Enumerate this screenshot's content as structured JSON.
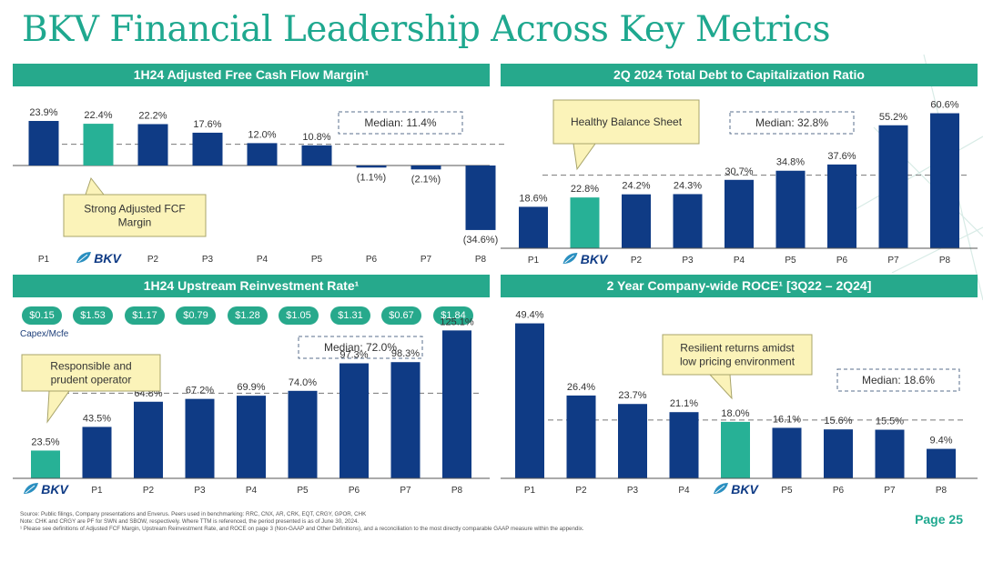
{
  "title": "BKV Financial Leadership Across Key Metrics",
  "colors": {
    "navy": "#0f3b85",
    "teal": "#27b196",
    "header": "#26a98c",
    "callout": "#fbf3b9",
    "callout_border": "#a8a46a"
  },
  "brand_label": "BKV",
  "chart_data": [
    {
      "type": "bar",
      "title": "1H24 Adjusted Free Cash Flow Margin¹",
      "categories": [
        "P1",
        "BKV",
        "P2",
        "P3",
        "P4",
        "P5",
        "P6",
        "P7",
        "P8"
      ],
      "values": [
        23.9,
        22.4,
        22.2,
        17.6,
        12.0,
        10.8,
        -1.1,
        -2.1,
        -34.6
      ],
      "labels": [
        "23.9%",
        "22.4%",
        "22.2%",
        "17.6%",
        "12.0%",
        "10.8%",
        "(1.1%)",
        "(2.1%)",
        "(34.6%)"
      ],
      "highlight_index": 1,
      "median": 11.4,
      "median_label": "Median: 11.4%",
      "callout": "Strong Adjusted FCF Margin",
      "ylim": [
        -36,
        25
      ]
    },
    {
      "type": "bar",
      "title": "2Q 2024 Total Debt to Capitalization Ratio",
      "categories": [
        "P1",
        "BKV",
        "P2",
        "P3",
        "P4",
        "P5",
        "P6",
        "P7",
        "P8"
      ],
      "values": [
        18.6,
        22.8,
        24.2,
        24.3,
        30.7,
        34.8,
        37.6,
        55.2,
        60.6
      ],
      "labels": [
        "18.6%",
        "22.8%",
        "24.2%",
        "24.3%",
        "30.7%",
        "34.8%",
        "37.6%",
        "55.2%",
        "60.6%"
      ],
      "highlight_index": 1,
      "median": 32.8,
      "median_label": "Median: 32.8%",
      "callout": "Healthy Balance Sheet",
      "ylim": [
        0,
        62
      ]
    },
    {
      "type": "bar",
      "title": "1H24 Upstream Reinvestment Rate¹",
      "categories": [
        "BKV",
        "P1",
        "P2",
        "P3",
        "P4",
        "P5",
        "P6",
        "P7",
        "P8"
      ],
      "values": [
        23.5,
        43.5,
        64.8,
        67.2,
        69.9,
        74.0,
        97.3,
        98.3,
        125.1
      ],
      "labels": [
        "23.5%",
        "43.5%",
        "64.8%",
        "67.2%",
        "69.9%",
        "74.0%",
        "97.3%",
        "98.3%",
        "125.1%"
      ],
      "highlight_index": 0,
      "median": 72.0,
      "median_label": "Median: 72.0%",
      "callout": "Responsible and prudent operator",
      "capex": [
        "$0.15",
        "$1.53",
        "$1.17",
        "$0.79",
        "$1.28",
        "$1.05",
        "$1.31",
        "$0.67",
        "$1.84"
      ],
      "capex_label": "Capex/Mcfe",
      "ylim": [
        0,
        128
      ]
    },
    {
      "type": "bar",
      "title": "2 Year Company-wide ROCE¹ [3Q22 – 2Q24]",
      "categories": [
        "P1",
        "P2",
        "P3",
        "P4",
        "BKV",
        "P5",
        "P6",
        "P7",
        "P8"
      ],
      "values": [
        49.4,
        26.4,
        23.7,
        21.1,
        18.0,
        16.1,
        15.6,
        15.5,
        9.4
      ],
      "labels": [
        "49.4%",
        "26.4%",
        "23.7%",
        "21.1%",
        "18.0%",
        "16.1%",
        "15.6%",
        "15.5%",
        "9.4%"
      ],
      "highlight_index": 4,
      "median": 18.6,
      "median_label": "Median: 18.6%",
      "callout": "Resilient returns amidst low pricing environment",
      "ylim": [
        0,
        50
      ]
    }
  ],
  "footnotes": [
    "Source: Public filings, Company presentations and Enverus. Peers used in benchmarking: RRC, CNX, AR, CRK, EQT, CRGY, GPOR, CHK",
    "Note: CHK and CRGY are PF for SWN and SBOW, respectively. Where TTM is referenced, the period presented is as of June 30, 2024.",
    "¹ Please see definitions of Adjusted FCF Margin, Upstream Reinvestment Rate, and ROCE on page 3 (Non-GAAP and Other Definitions), and a reconciliation to the most directly comparable GAAP measure within the appendix."
  ],
  "page_label": "Page 25"
}
